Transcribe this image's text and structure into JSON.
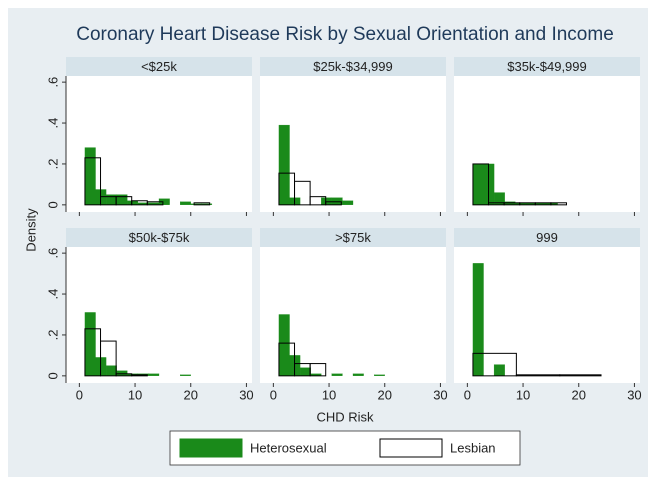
{
  "chart_data": {
    "type": "histogram",
    "title": "Coronary Heart Disease Risk by Sexual Orientation and Income",
    "xlabel": "CHD Risk",
    "ylabel": "Density",
    "xlim": [
      -2.4,
      31.0
    ],
    "xticks": [
      0,
      10,
      20,
      30
    ],
    "ylim": [
      -0.035,
      0.63
    ],
    "yticks": [
      0,
      {
        "value": 0.2,
        "label": ".2"
      },
      {
        "value": 0.4,
        "label": ".4"
      },
      {
        "value": 0.6,
        "label": ".6"
      }
    ],
    "legend": "bottom",
    "series": [
      {
        "name": "Heterosexual",
        "color": "#1a8a1a"
      },
      {
        "name": "Lesbian",
        "color": "none"
      }
    ],
    "panels": [
      {
        "title": "<$25k",
        "series": [
          {
            "bins": [
              1,
              2.9,
              4.8,
              6.7,
              8.6,
              10.5,
              12.4,
              14.3,
              16.2,
              18.1,
              20,
              21.9,
              23.8
            ],
            "values": [
              0.28,
              0.075,
              0.05,
              0.05,
              0.02,
              0.01,
              0.01,
              0.03,
              0,
              0.015,
              0.005,
              0.005
            ]
          },
          {
            "bins": [
              1,
              3.8,
              6.6,
              9.4,
              12.2,
              15,
              17.8,
              20.6,
              23.4
            ],
            "values": [
              0.23,
              0.04,
              0.04,
              0.02,
              0.015,
              0,
              0,
              0.01
            ]
          }
        ]
      },
      {
        "title": "$25k-$34,999",
        "series": [
          {
            "bins": [
              1,
              2.9,
              4.8,
              6.7,
              8.6,
              10.5,
              12.4,
              14.3,
              16.2,
              18.1,
              20,
              21.9,
              23.8
            ],
            "values": [
              0.39,
              0.035,
              0,
              0,
              0.035,
              0.035,
              0.02,
              0,
              0,
              0,
              0,
              0
            ]
          },
          {
            "bins": [
              1,
              3.8,
              6.6,
              9.4,
              12.2,
              15,
              17.8,
              20.6,
              23.4
            ],
            "values": [
              0.155,
              0.115,
              0.04,
              0.015,
              0,
              0,
              0,
              0
            ]
          }
        ]
      },
      {
        "title": "$35k-$49,999",
        "series": [
          {
            "bins": [
              1,
              2.9,
              4.8,
              6.7,
              8.6,
              10.5,
              12.4,
              14.3,
              16.2,
              18.1,
              20,
              21.9,
              23.8
            ],
            "values": [
              0.2,
              0.2,
              0.06,
              0.015,
              0.01,
              0.01,
              0.01,
              0.01,
              0,
              0,
              0,
              0
            ]
          },
          {
            "bins": [
              1,
              3.8,
              6.6,
              9.4,
              12.2,
              15,
              17.8,
              20.6,
              23.4
            ],
            "values": [
              0.2,
              0.01,
              0.01,
              0.01,
              0.01,
              0.01,
              0,
              0
            ]
          }
        ]
      },
      {
        "title": "$50k-$75k",
        "series": [
          {
            "bins": [
              1,
              2.9,
              4.8,
              6.7,
              8.6,
              10.5,
              12.4,
              14.3,
              16.2,
              18.1,
              20,
              21.9,
              23.8
            ],
            "values": [
              0.31,
              0.09,
              0.05,
              0.025,
              0.01,
              0.01,
              0.01,
              0,
              0,
              0.005,
              0,
              0
            ]
          },
          {
            "bins": [
              1,
              3.8,
              6.6,
              9.4,
              12.2,
              15,
              17.8,
              20.6,
              23.4
            ],
            "values": [
              0.23,
              0.17,
              0.01,
              0.005,
              0,
              0,
              0,
              0
            ]
          }
        ]
      },
      {
        "title": ">$75k",
        "series": [
          {
            "bins": [
              1,
              2.9,
              4.8,
              6.7,
              8.6,
              10.5,
              12.4,
              14.3,
              16.2,
              18.1,
              20,
              21.9,
              23.8
            ],
            "values": [
              0.3,
              0.1,
              0.04,
              0.01,
              0,
              0.01,
              0,
              0.01,
              0,
              0.005,
              0,
              0
            ]
          },
          {
            "bins": [
              1,
              3.8,
              6.6,
              9.4,
              12.2,
              15,
              17.8,
              20.6,
              23.4
            ],
            "values": [
              0.16,
              0.06,
              0.06,
              0,
              0,
              0,
              0,
              0
            ]
          }
        ]
      },
      {
        "title": "999",
        "series": [
          {
            "bins": [
              1,
              2.9,
              4.8,
              6.7,
              8.6,
              10.5,
              12.4,
              14.3,
              16.2,
              18.1,
              20,
              21.9,
              23.8
            ],
            "values": [
              0.55,
              0,
              0.055,
              0,
              0,
              0,
              0,
              0,
              0,
              0,
              0,
              0
            ]
          },
          {
            "bins": [
              1,
              8.8,
              16.6,
              24
            ],
            "values": [
              0.11,
              0.005,
              0.005
            ]
          }
        ]
      }
    ]
  }
}
